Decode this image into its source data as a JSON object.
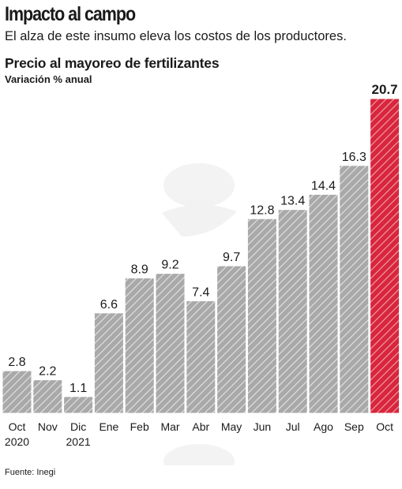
{
  "header": {
    "title": "Impacto al campo",
    "subtitle": "El alza de este insumo eleva los costos de los productores."
  },
  "footer": {
    "source": "Fuente: Inegi"
  },
  "colors": {
    "bar": "#a9a9a9",
    "highlight": "#d7263d",
    "text": "#1a1a1a"
  },
  "chart_data": {
    "type": "bar",
    "title": "Precio al mayoreo de fertilizantes",
    "ylabel": "Variación % anual",
    "xlabel": "",
    "categories": [
      "Oct",
      "Nov",
      "Dic",
      "Ene",
      "Feb",
      "Mar",
      "Abr",
      "May",
      "Jun",
      "Jul",
      "Ago",
      "Sep",
      "Oct"
    ],
    "year_labels": [
      "2020",
      "",
      "2021",
      "",
      "",
      "",
      "",
      "",
      "",
      "",
      "",
      "",
      ""
    ],
    "values": [
      2.8,
      2.2,
      1.1,
      6.6,
      8.9,
      9.2,
      7.4,
      9.7,
      12.8,
      13.4,
      14.4,
      16.3,
      20.7
    ],
    "value_labels": [
      "2.8",
      "2.2",
      "1.1",
      "6.6",
      "8.9",
      "9.2",
      "7.4",
      "9.7",
      "12.8",
      "13.4",
      "14.4",
      "16.3",
      "20.7"
    ],
    "highlight_index": 12,
    "ylim": [
      0,
      20.7
    ],
    "grid": false,
    "pattern": "diagonal-hatch"
  }
}
